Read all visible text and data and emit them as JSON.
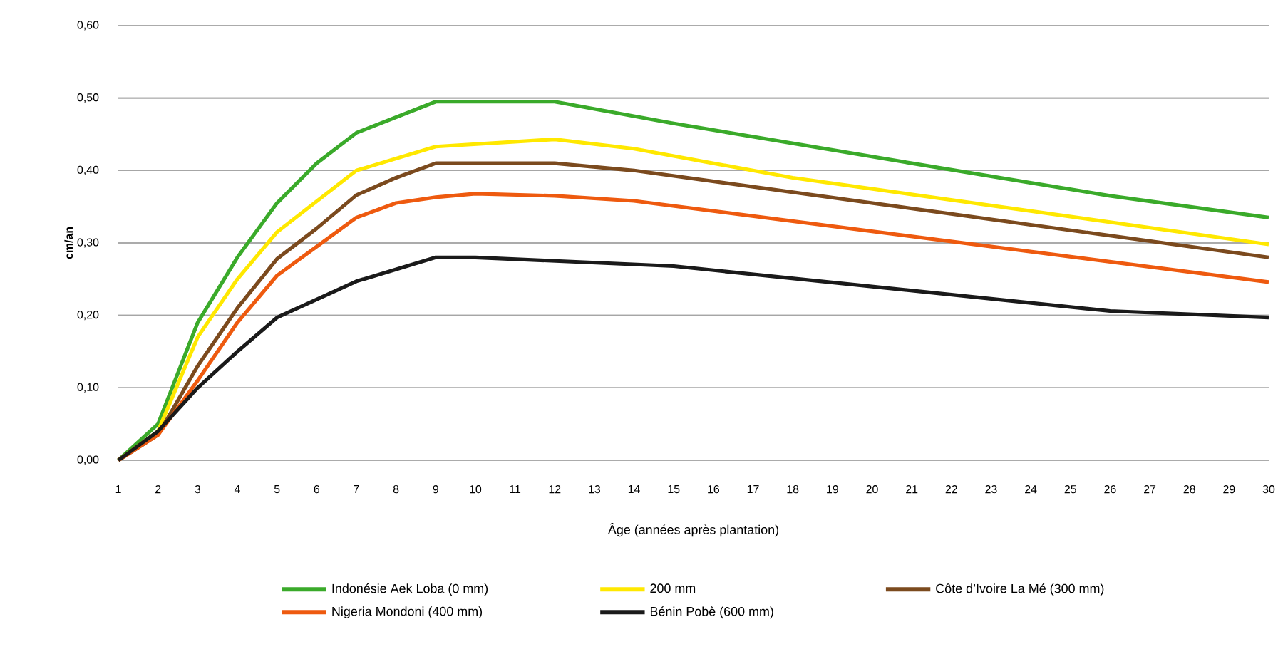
{
  "chart_data": {
    "type": "line",
    "xlabel": "Âge (années après plantation)",
    "ylabel": "cm/an",
    "xlim": [
      1,
      30
    ],
    "xticks": [
      1,
      2,
      3,
      4,
      5,
      6,
      7,
      8,
      9,
      10,
      11,
      12,
      13,
      14,
      15,
      16,
      17,
      18,
      19,
      20,
      21,
      22,
      23,
      24,
      25,
      26,
      27,
      28,
      29,
      30
    ],
    "ylim": [
      0,
      0.6
    ],
    "yticks": [
      {
        "value": 0,
        "label": "0,00"
      },
      {
        "value": 0.1,
        "label": "0,10"
      },
      {
        "value": 0.2,
        "label": "0,20"
      },
      {
        "value": 0.3,
        "label": "0,30"
      },
      {
        "value": 0.4,
        "label": "0,40"
      },
      {
        "value": 0.5,
        "label": "0,50"
      },
      {
        "value": 0.6,
        "label": "0,60"
      }
    ],
    "grid": "y",
    "legend": "bottom",
    "line_style": "solid",
    "series": [
      {
        "name": "Indonésie Aek Loba (0 mm)",
        "color": "#3aaa2a",
        "x": [
          1,
          2,
          3,
          4,
          5,
          6,
          7,
          9,
          12,
          15,
          21,
          26,
          30
        ],
        "values": [
          0,
          0.05,
          0.19,
          0.28,
          0.355,
          0.41,
          0.452,
          0.495,
          0.495,
          0.465,
          0.41,
          0.365,
          0.335
        ]
      },
      {
        "name": "200 mm",
        "color": "#ffe800",
        "x": [
          1,
          2,
          3,
          4,
          5,
          7,
          9,
          12,
          14,
          18,
          30
        ],
        "values": [
          0,
          0.04,
          0.17,
          0.25,
          0.315,
          0.4,
          0.433,
          0.443,
          0.43,
          0.39,
          0.298
        ]
      },
      {
        "name": "Côte d’Ivoire La Mé (300 mm)",
        "color": "#7b4a1e",
        "x": [
          1,
          2,
          3,
          4,
          5,
          6,
          7,
          8,
          9,
          12,
          14,
          30
        ],
        "values": [
          0,
          0.035,
          0.13,
          0.21,
          0.278,
          0.32,
          0.366,
          0.39,
          0.41,
          0.41,
          0.4,
          0.28
        ]
      },
      {
        "name": "Nigeria Mondoni (400 mm)",
        "color": "#ee5a0f",
        "x": [
          1,
          2,
          3,
          4,
          5,
          6,
          7,
          8,
          9,
          10,
          12,
          14,
          30
        ],
        "values": [
          0,
          0.035,
          0.11,
          0.19,
          0.255,
          0.295,
          0.335,
          0.355,
          0.363,
          0.368,
          0.365,
          0.358,
          0.246
        ]
      },
      {
        "name": "Bénin Pobè (600 mm)",
        "color": "#1a1a1a",
        "x": [
          1,
          2,
          3,
          4,
          5,
          7,
          9,
          10,
          15,
          26,
          30
        ],
        "values": [
          0,
          0.04,
          0.1,
          0.15,
          0.197,
          0.247,
          0.28,
          0.28,
          0.268,
          0.206,
          0.197
        ]
      }
    ]
  }
}
